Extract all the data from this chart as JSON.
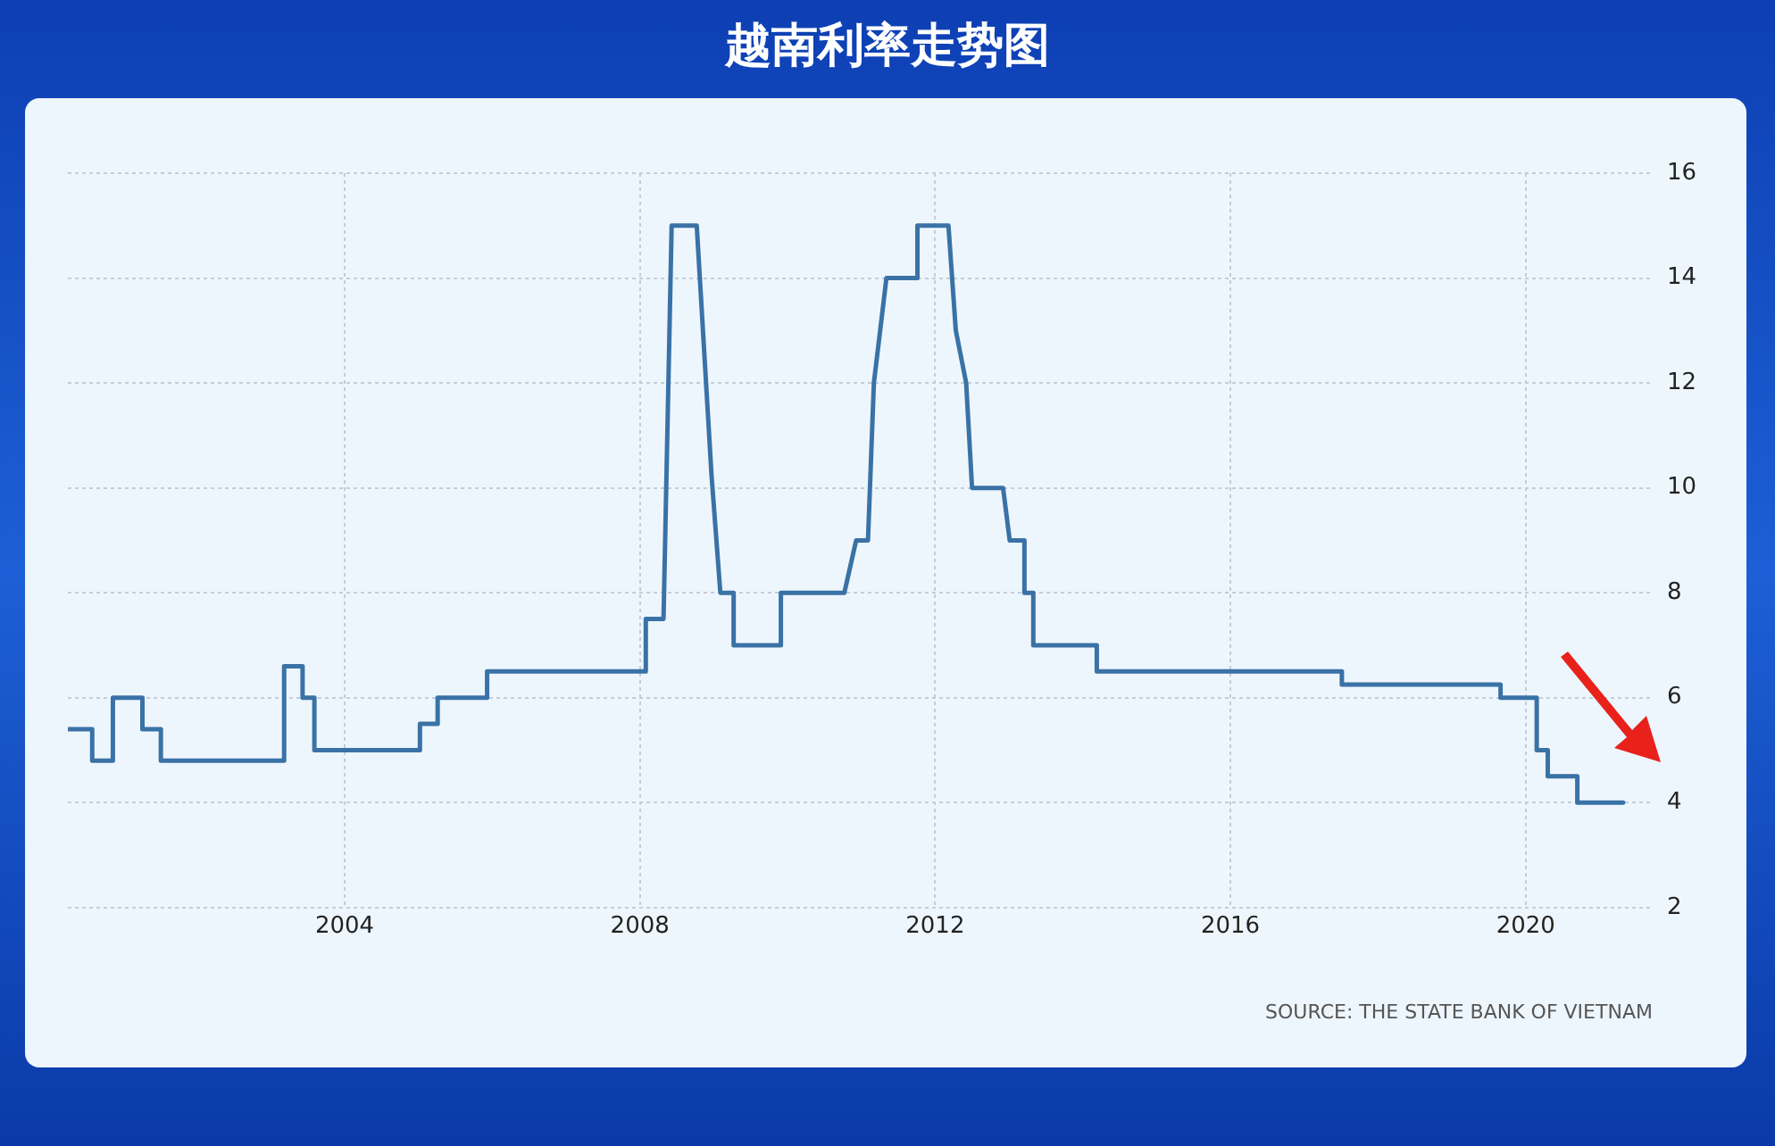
{
  "chart_data": {
    "type": "line",
    "title": "越南利率走势图",
    "x": [
      2000.25,
      2000.58,
      2000.58,
      2000.86,
      2000.86,
      2001.26,
      2001.26,
      2001.51,
      2001.51,
      2003.18,
      2003.18,
      2003.43,
      2003.43,
      2003.59,
      2003.59,
      2005.02,
      2005.02,
      2005.26,
      2005.26,
      2005.93,
      2005.93,
      2008.08,
      2008.08,
      2008.32,
      2008.43,
      2008.77,
      2008.97,
      2009.09,
      2009.27,
      2009.27,
      2009.91,
      2009.91,
      2010.77,
      2010.93,
      2011.09,
      2011.17,
      2011.34,
      2011.76,
      2011.76,
      2012.18,
      2012.28,
      2012.42,
      2012.5,
      2012.92,
      2013.01,
      2013.21,
      2013.21,
      2013.33,
      2013.33,
      2014.19,
      2014.19,
      2017.51,
      2017.51,
      2019.66,
      2019.66,
      2020.15,
      2020.15,
      2020.3,
      2020.3,
      2020.7,
      2020.7,
      2021.32
    ],
    "series": [
      {
        "color": "#3a72a6",
        "values": [
          5.4,
          5.4,
          4.8,
          4.8,
          6,
          6,
          5.4,
          5.4,
          4.8,
          4.8,
          6.6,
          6.6,
          6,
          6,
          5,
          5,
          5.5,
          5.5,
          6,
          6,
          6.5,
          6.5,
          7.5,
          7.5,
          15,
          15,
          10.25,
          8,
          8,
          7,
          7,
          8,
          8,
          9,
          9,
          12,
          14,
          14,
          15,
          15,
          13,
          12,
          10,
          10,
          9,
          9,
          8,
          8,
          7,
          7,
          6.5,
          6.5,
          6.25,
          6.25,
          6,
          6,
          5,
          5,
          4.5,
          4.5,
          4,
          4
        ]
      }
    ],
    "xlim": [
      2000.25,
      2021.72
    ],
    "xticks": [
      2004,
      2008,
      2012,
      2016,
      2020
    ],
    "ylim": [
      2,
      16
    ],
    "yticks": [
      2,
      4,
      6,
      8,
      10,
      12,
      14,
      16
    ],
    "grid": true,
    "legend": false,
    "marker": "none",
    "line_style": "solid",
    "annotations": [
      "SOURCE: THE STATE BANK OF VIETNAM"
    ]
  }
}
